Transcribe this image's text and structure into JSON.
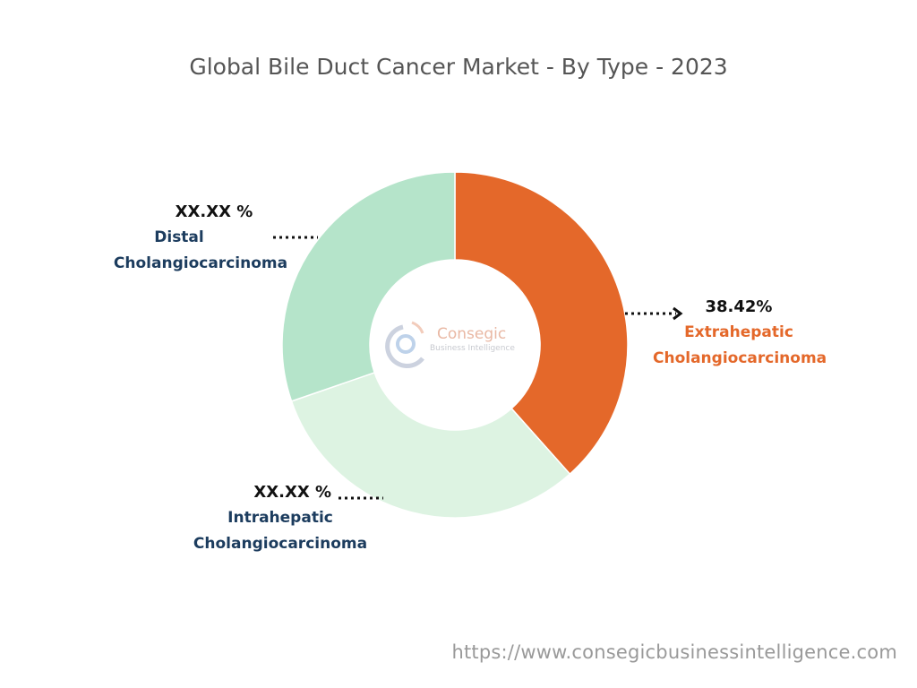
{
  "chart_data": {
    "type": "pie",
    "variant": "donut",
    "title": "Global Bile Duct Cancer Market - By Type - 2023",
    "categories": [
      "Extrahepatic Cholangiocarcinoma",
      "Intrahepatic Cholangiocarcinoma",
      "Distal Cholangiocarcinoma"
    ],
    "values": [
      38.42,
      31.3,
      30.28
    ],
    "colors": [
      "#e4682a",
      "#ddf3e2",
      "#b5e4ca"
    ],
    "labels": [
      {
        "pct": "38.42%",
        "line1": "Extrahepatic",
        "line2": "Cholangiocarcinoma"
      },
      {
        "pct": "XX.XX %",
        "line1": "Intrahepatic",
        "line2": "Cholangiocarcinoma"
      },
      {
        "pct": "XX.XX %",
        "line1": "Distal",
        "line2": "Cholangiocarcinoma"
      }
    ]
  },
  "logo": {
    "name": "Consegic",
    "tagline": "Business Intelligence"
  },
  "footer_url": "https://www.consegicbusinessintelligence.com"
}
